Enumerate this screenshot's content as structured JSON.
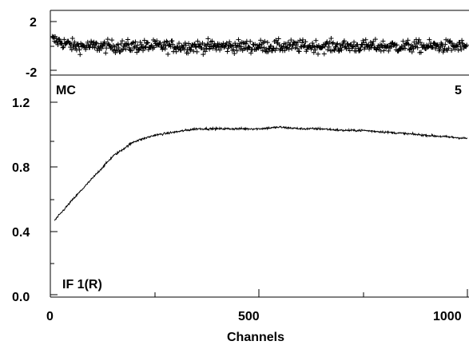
{
  "chart_data": [
    {
      "type": "scatter",
      "name": "residuals",
      "xlim": [
        0,
        1000
      ],
      "ylim": [
        -2.5,
        2.5
      ],
      "y_ticks": [
        -2,
        2
      ],
      "marker": "+",
      "grid": false,
      "annotations": {
        "top_left": "",
        "top_right": ""
      },
      "residual_amplitude": 0.55,
      "residual_bias_left": 0.6
    },
    {
      "type": "line",
      "name": "bandpass",
      "xlabel": "Channels",
      "ylabel": "",
      "xlim": [
        0,
        1000
      ],
      "ylim": [
        -0.02,
        1.24
      ],
      "x_ticks": [
        0,
        500,
        1000
      ],
      "y_ticks": [
        0.0,
        0.4,
        0.8,
        1.2
      ],
      "grid": false,
      "annotations": {
        "top_left": "MC",
        "top_right": "5",
        "bottom_left": "IF 1(R)"
      },
      "curve_points": [
        [
          10,
          0.46
        ],
        [
          50,
          0.58
        ],
        [
          100,
          0.72
        ],
        [
          150,
          0.86
        ],
        [
          200,
          0.95
        ],
        [
          250,
          0.99
        ],
        [
          300,
          1.01
        ],
        [
          350,
          1.03
        ],
        [
          400,
          1.03
        ],
        [
          450,
          1.03
        ],
        [
          500,
          1.03
        ],
        [
          550,
          1.04
        ],
        [
          600,
          1.03
        ],
        [
          650,
          1.03
        ],
        [
          700,
          1.02
        ],
        [
          750,
          1.02
        ],
        [
          800,
          1.01
        ],
        [
          850,
          1.0
        ],
        [
          900,
          0.99
        ],
        [
          950,
          0.98
        ],
        [
          1000,
          0.97
        ]
      ],
      "noise_amplitude": 0.006
    }
  ],
  "labels": {
    "top_tick_2": "2",
    "top_tick_m2": "-2",
    "y_tick_1_2": "1.2",
    "y_tick_0_8": "0.8",
    "y_tick_0_4": "0.4",
    "y_tick_0_0": "0.0",
    "x_tick_0": "0",
    "x_tick_500": "500",
    "x_tick_1000": "1000",
    "x_axis_label": "Channels",
    "mc_label": "MC",
    "panel_number": "5",
    "if_label": "IF 1(R)"
  }
}
